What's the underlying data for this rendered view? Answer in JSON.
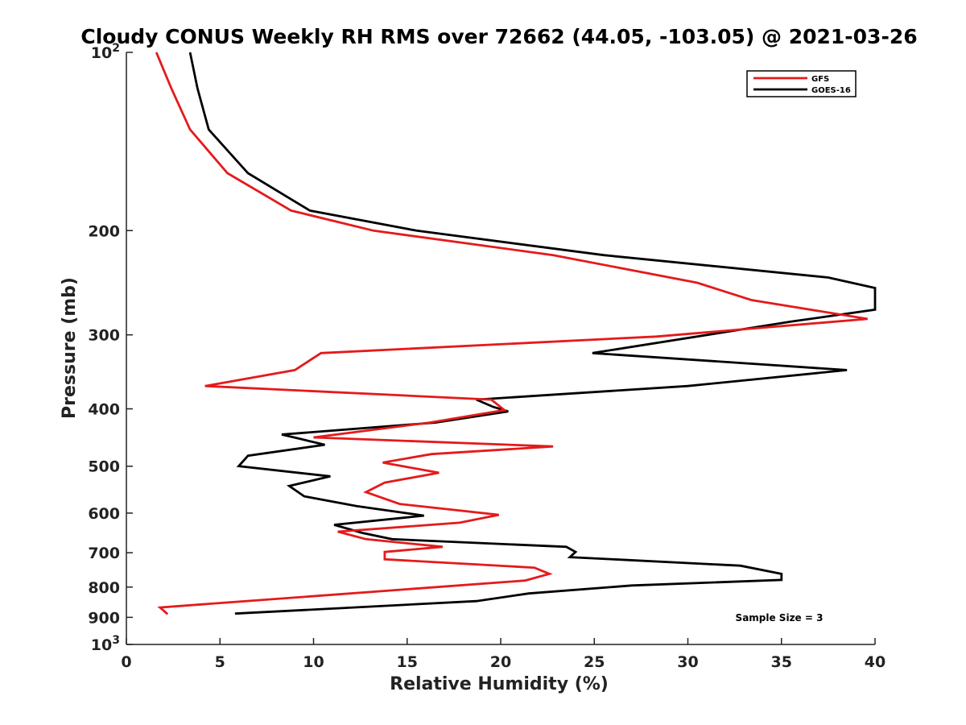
{
  "chart_data": {
    "type": "line",
    "title": "Cloudy CONUS Weekly RH RMS over 72662 (44.05, -103.05) @ 2021-03-26",
    "xlabel": "Relative Humidity (%)",
    "ylabel": "Pressure (mb)",
    "xlim": [
      0,
      40
    ],
    "ylim": [
      100,
      1000
    ],
    "yscale": "log",
    "y_reversed": true,
    "grid": false,
    "legend_position": "top-right",
    "x_ticks": [
      0,
      5,
      10,
      15,
      20,
      25,
      30,
      35,
      40
    ],
    "y_ticks": [
      {
        "value": 100,
        "label": "10",
        "sup": "2"
      },
      {
        "value": 200,
        "label": "200"
      },
      {
        "value": 300,
        "label": "300"
      },
      {
        "value": 400,
        "label": "400"
      },
      {
        "value": 500,
        "label": "500"
      },
      {
        "value": 600,
        "label": "600"
      },
      {
        "value": 700,
        "label": "700"
      },
      {
        "value": 800,
        "label": "800"
      },
      {
        "value": 900,
        "label": "900"
      },
      {
        "value": 1000,
        "label": "10",
        "sup": "3"
      }
    ],
    "annotation": "Sample Size = 3",
    "series": [
      {
        "name": "GFS",
        "color": "#e41a1c",
        "points": [
          [
            1.6,
            100
          ],
          [
            2.4,
            115
          ],
          [
            3.4,
            135
          ],
          [
            5.4,
            160
          ],
          [
            8.8,
            185
          ],
          [
            13.2,
            200
          ],
          [
            22.8,
            220
          ],
          [
            30.5,
            245
          ],
          [
            33.4,
            262
          ],
          [
            39.6,
            282
          ],
          [
            28.3,
            302
          ],
          [
            10.4,
            322
          ],
          [
            9.0,
            344
          ],
          [
            4.2,
            366
          ],
          [
            19.5,
            386
          ],
          [
            20.2,
            402
          ],
          [
            16.2,
            422
          ],
          [
            10.0,
            447
          ],
          [
            22.8,
            463
          ],
          [
            16.3,
            477
          ],
          [
            13.7,
            493
          ],
          [
            16.7,
            513
          ],
          [
            13.8,
            533
          ],
          [
            12.8,
            553
          ],
          [
            14.6,
            579
          ],
          [
            19.9,
            604
          ],
          [
            17.8,
            623
          ],
          [
            11.3,
            645
          ],
          [
            12.8,
            664
          ],
          [
            16.9,
            684
          ],
          [
            13.8,
            698
          ],
          [
            13.8,
            718
          ],
          [
            21.8,
            742
          ],
          [
            22.6,
            760
          ],
          [
            21.3,
            780
          ],
          [
            1.8,
            866
          ],
          [
            2.2,
            889
          ]
        ]
      },
      {
        "name": "GOES-16",
        "color": "#000000",
        "points": [
          [
            3.4,
            100
          ],
          [
            3.8,
            115
          ],
          [
            4.4,
            135
          ],
          [
            6.5,
            160
          ],
          [
            9.8,
            185
          ],
          [
            15.5,
            200
          ],
          [
            25.5,
            220
          ],
          [
            37.5,
            240
          ],
          [
            40.0,
            250
          ],
          [
            40.0,
            272
          ],
          [
            35.5,
            285
          ],
          [
            24.9,
            322
          ],
          [
            38.5,
            344
          ],
          [
            30.0,
            366
          ],
          [
            18.7,
            386
          ],
          [
            19.6,
            397
          ],
          [
            20.4,
            404
          ],
          [
            16.5,
            422
          ],
          [
            8.3,
            442
          ],
          [
            10.6,
            460
          ],
          [
            6.5,
            480
          ],
          [
            6.0,
            500
          ],
          [
            10.9,
            520
          ],
          [
            8.7,
            540
          ],
          [
            9.5,
            562
          ],
          [
            12.3,
            584
          ],
          [
            15.9,
            606
          ],
          [
            11.1,
            628
          ],
          [
            12.6,
            648
          ],
          [
            14.2,
            664
          ],
          [
            23.5,
            684
          ],
          [
            24.0,
            698
          ],
          [
            23.7,
            712
          ],
          [
            32.8,
            736
          ],
          [
            35.0,
            760
          ],
          [
            35.0,
            778
          ],
          [
            27.0,
            795
          ],
          [
            21.5,
            820
          ],
          [
            18.7,
            845
          ],
          [
            5.8,
            887
          ]
        ]
      }
    ]
  }
}
